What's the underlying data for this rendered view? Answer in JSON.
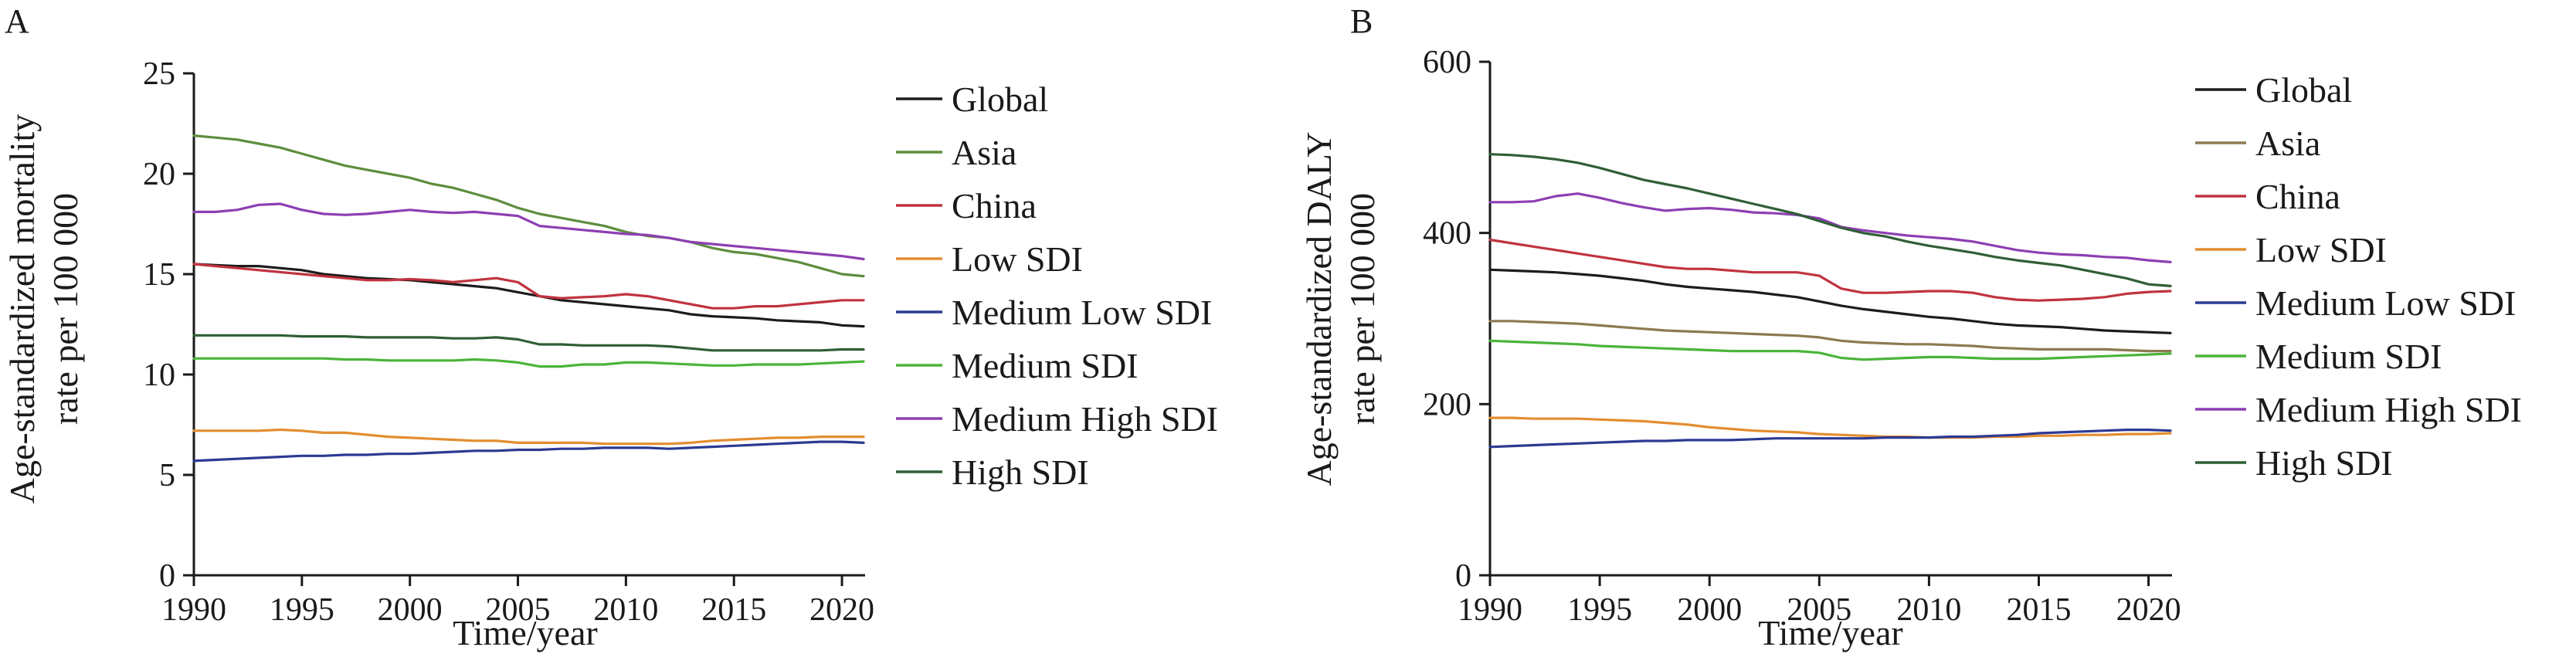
{
  "chart_data": [
    {
      "panel": "A",
      "type": "line",
      "xlabel": "Time/year",
      "ylabel": [
        "Age-standardized mortality",
        "rate per 100 000"
      ],
      "xlim": [
        1990,
        2021
      ],
      "ylim": [
        0,
        25
      ],
      "xticks": [
        1990,
        1995,
        2000,
        2005,
        2010,
        2015,
        2020
      ],
      "yticks": [
        0,
        5,
        10,
        15,
        20,
        25
      ],
      "legend_position": "right",
      "x": [
        1990,
        1991,
        1992,
        1993,
        1994,
        1995,
        1996,
        1997,
        1998,
        1999,
        2000,
        2001,
        2002,
        2003,
        2004,
        2005,
        2006,
        2007,
        2008,
        2009,
        2010,
        2011,
        2012,
        2013,
        2014,
        2015,
        2016,
        2017,
        2018,
        2019,
        2020,
        2021
      ],
      "series": [
        {
          "name": "Global",
          "color": "#1c1c1c",
          "values": [
            15.5,
            15.45,
            15.4,
            15.4,
            15.3,
            15.2,
            15.0,
            14.9,
            14.8,
            14.75,
            14.7,
            14.6,
            14.5,
            14.4,
            14.3,
            14.1,
            13.9,
            13.7,
            13.6,
            13.5,
            13.4,
            13.3,
            13.2,
            13.0,
            12.9,
            12.85,
            12.8,
            12.7,
            12.65,
            12.6,
            12.45,
            12.4
          ]
        },
        {
          "name": "Asia",
          "color": "#5e8d3e",
          "values": [
            21.9,
            21.8,
            21.7,
            21.5,
            21.3,
            21.0,
            20.7,
            20.4,
            20.2,
            20.0,
            19.8,
            19.5,
            19.3,
            19.0,
            18.7,
            18.3,
            18.0,
            17.8,
            17.6,
            17.4,
            17.1,
            16.9,
            16.8,
            16.6,
            16.3,
            16.1,
            16.0,
            15.8,
            15.6,
            15.3,
            15.0,
            14.9
          ]
        },
        {
          "name": "China",
          "color": "#c0333f",
          "values": [
            15.5,
            15.4,
            15.3,
            15.2,
            15.1,
            15.0,
            14.9,
            14.8,
            14.7,
            14.7,
            14.75,
            14.7,
            14.6,
            14.7,
            14.8,
            14.6,
            13.9,
            13.8,
            13.85,
            13.9,
            14.0,
            13.9,
            13.7,
            13.5,
            13.3,
            13.3,
            13.4,
            13.4,
            13.5,
            13.6,
            13.7,
            13.7
          ]
        },
        {
          "name": "Low SDI",
          "color": "#e38d30",
          "values": [
            7.2,
            7.2,
            7.2,
            7.2,
            7.25,
            7.2,
            7.1,
            7.1,
            7.0,
            6.9,
            6.85,
            6.8,
            6.75,
            6.7,
            6.7,
            6.6,
            6.6,
            6.6,
            6.6,
            6.55,
            6.55,
            6.55,
            6.55,
            6.6,
            6.7,
            6.75,
            6.8,
            6.85,
            6.85,
            6.9,
            6.9,
            6.9
          ]
        },
        {
          "name": "Medium Low SDI",
          "color": "#2b3a93",
          "values": [
            5.7,
            5.75,
            5.8,
            5.85,
            5.9,
            5.95,
            5.95,
            6.0,
            6.0,
            6.05,
            6.05,
            6.1,
            6.15,
            6.2,
            6.2,
            6.25,
            6.25,
            6.3,
            6.3,
            6.35,
            6.35,
            6.35,
            6.3,
            6.35,
            6.4,
            6.45,
            6.5,
            6.55,
            6.6,
            6.65,
            6.65,
            6.6
          ]
        },
        {
          "name": "Medium SDI",
          "color": "#4bb43a",
          "values": [
            10.8,
            10.8,
            10.8,
            10.8,
            10.8,
            10.8,
            10.8,
            10.75,
            10.75,
            10.7,
            10.7,
            10.7,
            10.7,
            10.75,
            10.7,
            10.6,
            10.4,
            10.4,
            10.5,
            10.5,
            10.6,
            10.6,
            10.55,
            10.5,
            10.45,
            10.45,
            10.5,
            10.5,
            10.5,
            10.55,
            10.6,
            10.65
          ]
        },
        {
          "name": "Medium High SDI",
          "color": "#8d3fb3",
          "values": [
            18.1,
            18.1,
            18.2,
            18.45,
            18.5,
            18.2,
            18.0,
            17.95,
            18.0,
            18.1,
            18.2,
            18.1,
            18.05,
            18.1,
            18.0,
            17.9,
            17.4,
            17.3,
            17.2,
            17.1,
            17.0,
            16.95,
            16.8,
            16.6,
            16.5,
            16.4,
            16.3,
            16.2,
            16.1,
            16.0,
            15.9,
            15.75
          ]
        },
        {
          "name": "High SDI",
          "color": "#2f5e36",
          "values": [
            11.95,
            11.95,
            11.95,
            11.95,
            11.95,
            11.9,
            11.9,
            11.9,
            11.85,
            11.85,
            11.85,
            11.85,
            11.8,
            11.8,
            11.85,
            11.75,
            11.5,
            11.5,
            11.45,
            11.45,
            11.45,
            11.45,
            11.4,
            11.3,
            11.2,
            11.2,
            11.2,
            11.2,
            11.2,
            11.2,
            11.25,
            11.25
          ]
        }
      ]
    },
    {
      "panel": "B",
      "type": "line",
      "xlabel": "Time/year",
      "ylabel": [
        "Age-standardized DALY",
        "rate per 100 000"
      ],
      "xlim": [
        1990,
        2021
      ],
      "ylim": [
        0,
        600
      ],
      "xticks": [
        1990,
        1995,
        2000,
        2005,
        2010,
        2015,
        2020
      ],
      "yticks": [
        0,
        200,
        400,
        600
      ],
      "legend_position": "right",
      "x": [
        1990,
        1991,
        1992,
        1993,
        1994,
        1995,
        1996,
        1997,
        1998,
        1999,
        2000,
        2001,
        2002,
        2003,
        2004,
        2005,
        2006,
        2007,
        2008,
        2009,
        2010,
        2011,
        2012,
        2013,
        2014,
        2015,
        2016,
        2017,
        2018,
        2019,
        2020,
        2021
      ],
      "series": [
        {
          "name": "Global",
          "color": "#1c1c1c",
          "values": [
            357,
            356,
            355,
            354,
            352,
            350,
            347,
            344,
            340,
            337,
            335,
            333,
            331,
            328,
            325,
            320,
            315,
            311,
            308,
            305,
            302,
            300,
            297,
            294,
            292,
            291,
            290,
            288,
            286,
            285,
            284,
            283
          ]
        },
        {
          "name": "Asia",
          "color": "#8b7a52",
          "values": [
            297,
            297,
            296,
            295,
            294,
            292,
            290,
            288,
            286,
            285,
            284,
            283,
            282,
            281,
            280,
            278,
            274,
            272,
            271,
            270,
            270,
            269,
            268,
            266,
            265,
            264,
            264,
            264,
            264,
            263,
            262,
            262
          ]
        },
        {
          "name": "China",
          "color": "#c0333f",
          "values": [
            392,
            388,
            384,
            380,
            376,
            372,
            368,
            364,
            360,
            358,
            358,
            356,
            354,
            354,
            354,
            350,
            335,
            330,
            330,
            331,
            332,
            332,
            330,
            325,
            322,
            321,
            322,
            323,
            325,
            329,
            331,
            332
          ]
        },
        {
          "name": "Low SDI",
          "color": "#e38d30",
          "values": [
            184,
            184,
            183,
            183,
            183,
            182,
            181,
            180,
            178,
            176,
            173,
            171,
            169,
            168,
            167,
            165,
            164,
            163,
            162,
            162,
            161,
            161,
            161,
            162,
            162,
            163,
            163,
            164,
            164,
            165,
            165,
            166
          ]
        },
        {
          "name": "Medium Low SDI",
          "color": "#2b3a93",
          "values": [
            150,
            151,
            152,
            153,
            154,
            155,
            156,
            157,
            157,
            158,
            158,
            158,
            159,
            160,
            160,
            160,
            160,
            160,
            161,
            161,
            161,
            162,
            162,
            163,
            164,
            166,
            167,
            168,
            169,
            170,
            170,
            169
          ]
        },
        {
          "name": "Medium SDI",
          "color": "#4bb43a",
          "values": [
            274,
            273,
            272,
            271,
            270,
            268,
            267,
            266,
            265,
            264,
            263,
            262,
            262,
            262,
            262,
            260,
            254,
            252,
            253,
            254,
            255,
            255,
            254,
            253,
            253,
            253,
            254,
            255,
            256,
            257,
            258,
            259
          ]
        },
        {
          "name": "Medium High SDI",
          "color": "#8d3fb3",
          "values": [
            436,
            436,
            437,
            443,
            446,
            441,
            435,
            430,
            426,
            428,
            429,
            427,
            424,
            423,
            421,
            417,
            407,
            403,
            400,
            397,
            395,
            393,
            390,
            385,
            380,
            377,
            375,
            374,
            372,
            371,
            368,
            366
          ]
        },
        {
          "name": "High SDI",
          "color": "#2f5e36",
          "values": [
            492,
            491,
            489,
            486,
            482,
            476,
            469,
            462,
            457,
            452,
            446,
            440,
            434,
            428,
            422,
            414,
            406,
            400,
            396,
            390,
            385,
            381,
            377,
            372,
            368,
            365,
            362,
            357,
            352,
            347,
            340,
            338
          ]
        }
      ]
    }
  ]
}
